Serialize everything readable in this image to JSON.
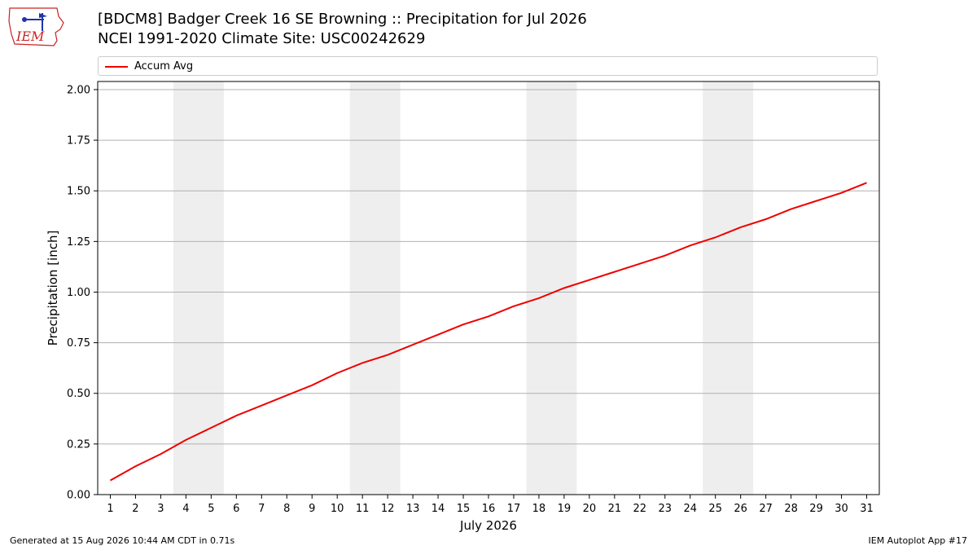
{
  "header": {
    "title": "[BDCM8] Badger Creek 16 SE Browning :: Precipitation for Jul 2026",
    "subtitle": "NCEI 1991-2020 Climate Site: USC00242629",
    "logo_text": "IEM"
  },
  "footer": {
    "left": "Generated at 15 Aug 2026 10:44 AM CDT in 0.71s",
    "right": "IEM Autoplot App #17"
  },
  "colors": {
    "line": "#ee0000",
    "weekend_band": "#eeeeee",
    "grid": "#b0b0b0",
    "logo": "#cc2222"
  },
  "chart_data": {
    "type": "line",
    "title": "[BDCM8] Badger Creek 16 SE Browning :: Precipitation for Jul 2026",
    "xlabel": "July 2026",
    "ylabel": "Precipitation [inch]",
    "ylim": [
      0,
      2.04
    ],
    "xlim": [
      0.5,
      31.5
    ],
    "yticks": [
      0.0,
      0.25,
      0.5,
      0.75,
      1.0,
      1.25,
      1.5,
      1.75,
      2.0
    ],
    "ytick_labels": [
      "0.00",
      "0.25",
      "0.50",
      "0.75",
      "1.00",
      "1.25",
      "1.50",
      "1.75",
      "2.00"
    ],
    "x": [
      1,
      2,
      3,
      4,
      5,
      6,
      7,
      8,
      9,
      10,
      11,
      12,
      13,
      14,
      15,
      16,
      17,
      18,
      19,
      20,
      21,
      22,
      23,
      24,
      25,
      26,
      27,
      28,
      29,
      30,
      31
    ],
    "xtick_labels": [
      "1",
      "2",
      "3",
      "4",
      "5",
      "6",
      "7",
      "8",
      "9",
      "10",
      "11",
      "12",
      "13",
      "14",
      "15",
      "16",
      "17",
      "18",
      "19",
      "20",
      "21",
      "22",
      "23",
      "24",
      "25",
      "26",
      "27",
      "28",
      "29",
      "30",
      "31"
    ],
    "shaded_ranges": [
      [
        3.5,
        5.5
      ],
      [
        10.5,
        12.5
      ],
      [
        17.5,
        19.5
      ],
      [
        24.5,
        26.5
      ]
    ],
    "grid": "horizontal",
    "legend": "top",
    "series": [
      {
        "name": "Accum Avg",
        "values": [
          0.07,
          0.14,
          0.2,
          0.27,
          0.33,
          0.39,
          0.44,
          0.49,
          0.54,
          0.6,
          0.65,
          0.69,
          0.74,
          0.79,
          0.84,
          0.88,
          0.93,
          0.97,
          1.02,
          1.06,
          1.1,
          1.14,
          1.18,
          1.23,
          1.27,
          1.32,
          1.36,
          1.41,
          1.45,
          1.49,
          1.54
        ]
      }
    ]
  }
}
